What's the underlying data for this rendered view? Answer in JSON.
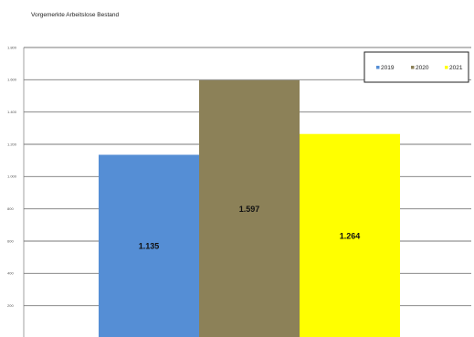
{
  "chart_data": {
    "type": "bar",
    "title": "Vorgemerkte Arbeitslose Bestand",
    "xlabel": "",
    "ylabel": "",
    "ylim": [
      0,
      1800
    ],
    "yticks": [
      200,
      400,
      600,
      800,
      1000,
      1200,
      1400,
      1600,
      1800
    ],
    "ytick_labels": [
      "200",
      "400",
      "600",
      "800",
      "1.000",
      "1.200",
      "1.400",
      "1.600",
      "1.800"
    ],
    "grid": true,
    "legend_position": "top-right",
    "series": [
      {
        "name": "2019",
        "value": 1135,
        "label": "1.135",
        "color": "#558ed5"
      },
      {
        "name": "2020",
        "value": 1597,
        "label": "1.597",
        "color": "#8c8158"
      },
      {
        "name": "2021",
        "value": 1264,
        "label": "1.264",
        "color": "#ffff00"
      }
    ]
  }
}
